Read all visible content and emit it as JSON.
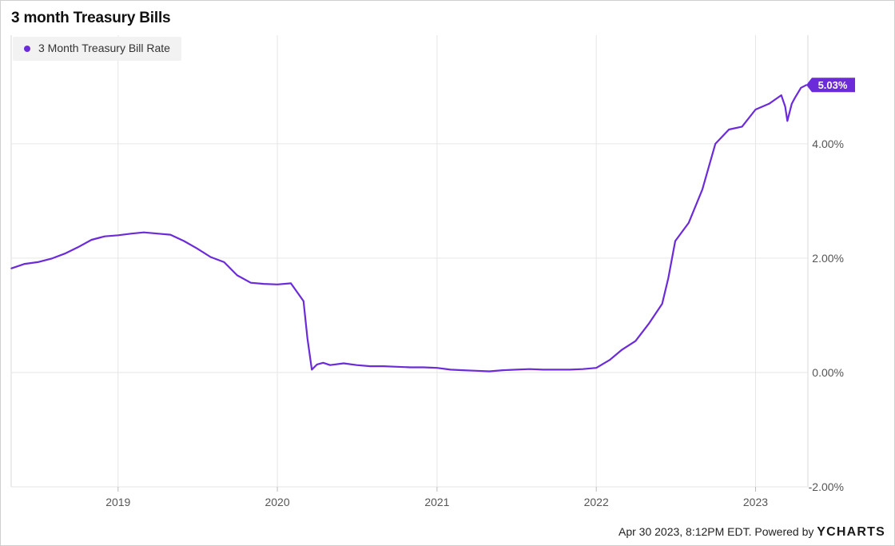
{
  "colors": {
    "series": "#6c2bd9",
    "grid": "#e6e6e6",
    "axis_text": "#555555"
  },
  "chart_data": {
    "type": "line",
    "title": "3 month Treasury Bills",
    "xlabel": "",
    "ylabel": "",
    "x_tick_labels": [
      "2019",
      "2020",
      "2021",
      "2022",
      "2023"
    ],
    "y_tick_labels": [
      "4.00%",
      "2.00%",
      "0.00%",
      "-2.00%"
    ],
    "y_ticks": [
      4,
      2,
      0,
      -2
    ],
    "ylim": [
      -2.0,
      5.9
    ],
    "xlim": [
      "2018-05-01",
      "2023-05-01"
    ],
    "grid": true,
    "legend_position": "top-left",
    "series": [
      {
        "name": "3 Month Treasury Bill Rate",
        "last_value_label": "5.03%",
        "x": [
          "2018-05-01",
          "2018-06-01",
          "2018-07-01",
          "2018-08-01",
          "2018-09-01",
          "2018-10-01",
          "2018-11-01",
          "2018-12-01",
          "2019-01-01",
          "2019-02-01",
          "2019-03-01",
          "2019-04-01",
          "2019-05-01",
          "2019-06-01",
          "2019-07-01",
          "2019-08-01",
          "2019-09-01",
          "2019-10-01",
          "2019-11-01",
          "2019-12-01",
          "2020-01-01",
          "2020-02-01",
          "2020-03-01",
          "2020-03-10",
          "2020-03-20",
          "2020-04-01",
          "2020-04-15",
          "2020-05-01",
          "2020-06-01",
          "2020-07-01",
          "2020-08-01",
          "2020-09-01",
          "2020-10-01",
          "2020-11-01",
          "2020-12-01",
          "2021-01-01",
          "2021-02-01",
          "2021-03-01",
          "2021-04-01",
          "2021-05-01",
          "2021-06-01",
          "2021-07-01",
          "2021-08-01",
          "2021-09-01",
          "2021-10-01",
          "2021-11-01",
          "2021-12-01",
          "2022-01-01",
          "2022-02-01",
          "2022-03-01",
          "2022-04-01",
          "2022-05-01",
          "2022-06-01",
          "2022-06-15",
          "2022-07-01",
          "2022-08-01",
          "2022-09-01",
          "2022-10-01",
          "2022-11-01",
          "2022-12-01",
          "2023-01-01",
          "2023-02-01",
          "2023-03-01",
          "2023-03-10",
          "2023-03-15",
          "2023-03-25",
          "2023-04-01",
          "2023-04-15",
          "2023-04-28"
        ],
        "values": [
          1.82,
          1.9,
          1.93,
          1.99,
          2.08,
          2.19,
          2.32,
          2.38,
          2.4,
          2.43,
          2.45,
          2.43,
          2.41,
          2.3,
          2.17,
          2.02,
          1.93,
          1.7,
          1.57,
          1.55,
          1.54,
          1.56,
          1.25,
          0.6,
          0.05,
          0.14,
          0.17,
          0.13,
          0.16,
          0.13,
          0.11,
          0.11,
          0.1,
          0.09,
          0.09,
          0.08,
          0.05,
          0.04,
          0.03,
          0.02,
          0.04,
          0.05,
          0.06,
          0.05,
          0.05,
          0.05,
          0.06,
          0.08,
          0.22,
          0.4,
          0.55,
          0.85,
          1.2,
          1.65,
          2.3,
          2.62,
          3.2,
          4.0,
          4.25,
          4.3,
          4.6,
          4.7,
          4.85,
          4.65,
          4.4,
          4.7,
          4.8,
          4.98,
          5.03
        ]
      }
    ]
  },
  "footer": {
    "timestamp": "Apr 30 2023, 8:12PM EDT.",
    "powered_by": "Powered by",
    "brand": "YCHARTS"
  }
}
